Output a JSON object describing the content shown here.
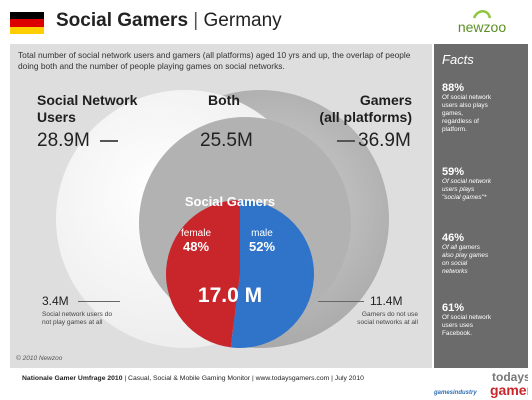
{
  "header": {
    "title_bold": "Social Gamers",
    "separator": " | ",
    "title_rest": "Germany",
    "flag_colors": [
      "#000000",
      "#dd0000",
      "#ffce00"
    ],
    "logo_text": "newzoo"
  },
  "intro": "Total number of social network users and gamers (all platforms) aged 10 yrs and up, the overlap of people doing both and the number of people playing games on social networks.",
  "diagram": {
    "left_label_1": "Social Network",
    "left_label_2": "Users",
    "left_value": "28.9M",
    "center_label": "Both",
    "center_value": "25.5M",
    "right_label_1": "Gamers",
    "right_label_2": "(all platforms)",
    "right_value": "36.9M",
    "inner_title": "Social Gamers",
    "female_label": "female",
    "female_pct": "48%",
    "male_label": "male",
    "male_pct": "52%",
    "total": "17.0 M",
    "bottom_left_value": "3.4M",
    "bottom_left_note_1": "Social network users do",
    "bottom_left_note_2": "not play games at all",
    "bottom_right_value": "11.4M",
    "bottom_right_note_1": "Gamers do not use",
    "bottom_right_note_2": "social networks at all",
    "female_share": 0.48,
    "colors": {
      "female": "#c8262b",
      "male": "#2f74c9"
    }
  },
  "facts": {
    "title": "Facts",
    "items": [
      {
        "pct": "88%",
        "lines": [
          "Of social network",
          "users also plays",
          "games,",
          "regardless of",
          "platform."
        ],
        "italic": false
      },
      {
        "pct": "59%",
        "lines": [
          "Of social network",
          "users plays",
          "\"social games\"*"
        ],
        "italic": true
      },
      {
        "pct": "46%",
        "lines": [
          "Of all gamers",
          "also play games",
          "on social",
          "networks"
        ],
        "italic": true
      },
      {
        "pct": "61%",
        "lines": [
          "Of social network",
          "users uses",
          "Facebook."
        ],
        "italic": false
      }
    ]
  },
  "copyright": "© 2010 Newzoo",
  "footer": {
    "bold": "Nationale Gamer Umfrage 2010",
    "rest": " | Casual, Social & Mobile Gaming Monitor | www.todaysgamers.com | July 2010"
  },
  "bottom_logos": {
    "gamesindustry": "gamesindustry",
    "todays": "todays",
    "gamers": "gamers"
  }
}
